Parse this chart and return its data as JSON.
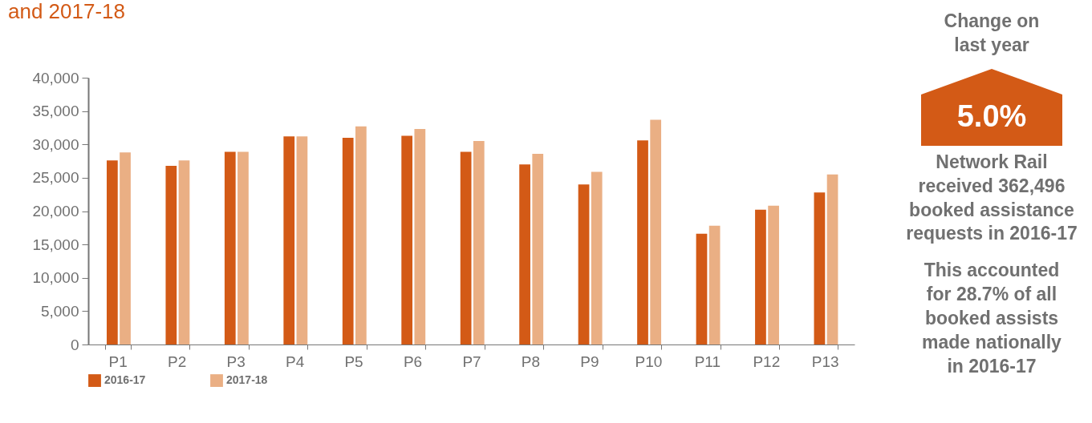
{
  "chart_data": {
    "type": "bar",
    "title": "and 2017-18",
    "categories": [
      "P1",
      "P2",
      "P3",
      "P4",
      "P5",
      "P6",
      "P7",
      "P8",
      "P9",
      "P10",
      "P11",
      "P12",
      "P13"
    ],
    "series": [
      {
        "name": "2016-17",
        "color": "#d35a16",
        "values": [
          27600,
          26800,
          28900,
          31200,
          31000,
          31300,
          28900,
          27000,
          24000,
          30600,
          16600,
          20200,
          22800
        ]
      },
      {
        "name": "2017-18",
        "color": "#eaaf84",
        "values": [
          28800,
          27600,
          28900,
          31200,
          32700,
          32300,
          30500,
          28600,
          25900,
          33700,
          17800,
          20800,
          25500
        ]
      }
    ],
    "ylim": [
      0,
      40000
    ],
    "yticks": [
      0,
      {
        "value": 5000,
        "label": "5,000"
      },
      {
        "value": 10000,
        "label": "10,000"
      },
      {
        "value": 15000,
        "label": "15,000"
      },
      {
        "value": 20000,
        "label": "20,000"
      },
      {
        "value": 25000,
        "label": "25,000"
      },
      {
        "value": 30000,
        "label": "30,000"
      },
      {
        "value": 35000,
        "label": "35,000"
      },
      {
        "value": 40000,
        "label": "40,000"
      }
    ],
    "grid": false,
    "legend": "bottom left",
    "annotations": [
      "Change on last year",
      "5.0%",
      "Network Rail received 362,496 booked assistance requests in 2016-17",
      "This accounted for 28.7% of all booked assists made nationally in 2016-17"
    ]
  }
}
